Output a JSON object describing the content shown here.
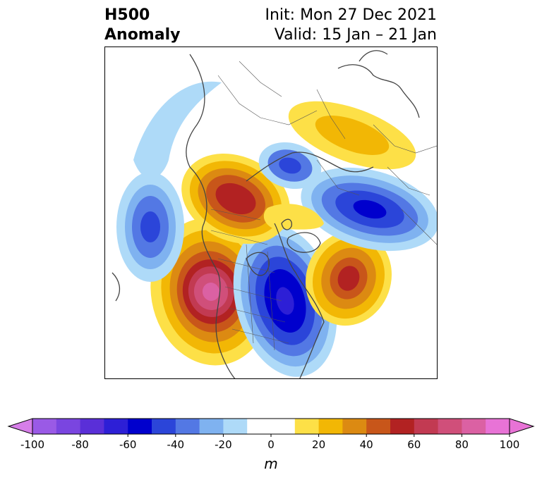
{
  "header": {
    "title_line1": "H500",
    "title_line2": "Anomaly",
    "init_line": "Init: Mon 27 Dec 2021",
    "valid_line": "Valid: 15 Jan – 21 Jan"
  },
  "colorbar": {
    "unit": "m",
    "ticks": [
      "-100",
      "-80",
      "-60",
      "-40",
      "-20",
      "0",
      "20",
      "40",
      "60",
      "80",
      "100"
    ],
    "bins": [
      {
        "range": [
          -100,
          -90
        ],
        "color": "#9a5ae6"
      },
      {
        "range": [
          -90,
          -80
        ],
        "color": "#7a45e0"
      },
      {
        "range": [
          -80,
          -70
        ],
        "color": "#5a2fd8"
      },
      {
        "range": [
          -70,
          -60
        ],
        "color": "#2d1fd6"
      },
      {
        "range": [
          -60,
          -50
        ],
        "color": "#0000cd"
      },
      {
        "range": [
          -50,
          -40
        ],
        "color": "#2b45d9"
      },
      {
        "range": [
          -40,
          -30
        ],
        "color": "#5378e4"
      },
      {
        "range": [
          -30,
          -20
        ],
        "color": "#7fb2f0"
      },
      {
        "range": [
          -20,
          -10
        ],
        "color": "#aedaf8"
      },
      {
        "range": [
          -10,
          10
        ],
        "color": "#ffffff"
      },
      {
        "range": [
          10,
          20
        ],
        "color": "#fde047"
      },
      {
        "range": [
          20,
          30
        ],
        "color": "#f2b705"
      },
      {
        "range": [
          30,
          40
        ],
        "color": "#dc8a12"
      },
      {
        "range": [
          40,
          50
        ],
        "color": "#c8561a"
      },
      {
        "range": [
          50,
          60
        ],
        "color": "#b22222"
      },
      {
        "range": [
          60,
          70
        ],
        "color": "#c23a52"
      },
      {
        "range": [
          70,
          80
        ],
        "color": "#d04f7a"
      },
      {
        "range": [
          80,
          90
        ],
        "color": "#db61a3"
      },
      {
        "range": [
          90,
          100
        ],
        "color": "#e873d6"
      }
    ],
    "under_color": "#d67ee8",
    "over_color": "#e873d6"
  },
  "map": {
    "projection": "north-polar-stereographic",
    "field": "500 hPa geopotential height anomaly",
    "features": [
      {
        "name": "positive-anomaly-western-north-america",
        "peak_m": 80,
        "color": "#db61a3"
      },
      {
        "name": "negative-anomaly-eastern-north-america",
        "peak_m": -60,
        "color": "#0000cd"
      },
      {
        "name": "positive-anomaly-north-atlantic",
        "peak_m": 50,
        "color": "#b22222"
      },
      {
        "name": "negative-anomaly-europe",
        "peak_m": -60,
        "color": "#0000cd"
      },
      {
        "name": "positive-anomaly-east-siberia",
        "peak_m": 50,
        "color": "#b22222"
      },
      {
        "name": "negative-anomaly-north-pacific",
        "peak_m": -40,
        "color": "#2b45d9"
      },
      {
        "name": "positive-anomaly-central-asia",
        "peak_m": 20,
        "color": "#f2b705"
      },
      {
        "name": "negative-anomaly-ural",
        "peak_m": -40,
        "color": "#2b45d9"
      }
    ],
    "coastline_color": "#444444",
    "border_color": "#555555"
  }
}
